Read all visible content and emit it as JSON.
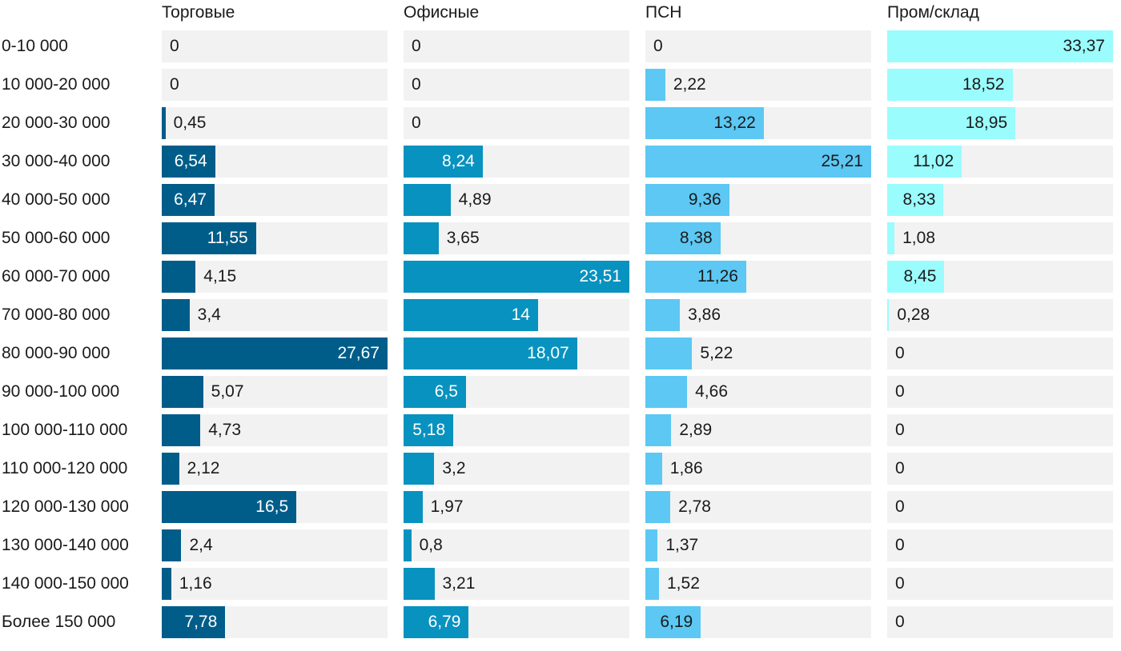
{
  "chart_data": {
    "type": "bar",
    "orientation": "horizontal",
    "layout": "small-multiples",
    "categories": [
      "0-10 000",
      "10 000-20 000",
      "20 000-30 000",
      "30 000-40 000",
      "40 000-50 000",
      "50 000-60 000",
      "60 000-70 000",
      "70 000-80 000",
      "80 000-90 000",
      "90 000-100 000",
      "100 000-110 000",
      "110 000-120 000",
      "120 000-130 000",
      "130 000-140 000",
      "140 000-150 000",
      "Более 150 000"
    ],
    "series": [
      {
        "name": "Торговые",
        "color": "#005d89",
        "label_color_inside": "#ffffff",
        "values": [
          0,
          0,
          0.45,
          6.54,
          6.47,
          11.55,
          4.15,
          3.4,
          27.67,
          5.07,
          4.73,
          2.12,
          16.5,
          2.4,
          1.16,
          7.78
        ],
        "labels": [
          "0",
          "0",
          "0,45",
          "6,54",
          "6,47",
          "11,55",
          "4,15",
          "3,4",
          "27,67",
          "5,07",
          "4,73",
          "2,12",
          "16,5",
          "2,4",
          "1,16",
          "7,78"
        ],
        "xlim": [
          0,
          27.67
        ]
      },
      {
        "name": "Офисные",
        "color": "#0892bf",
        "label_color_inside": "#ffffff",
        "values": [
          0,
          0,
          0,
          8.24,
          4.89,
          3.65,
          23.51,
          14,
          18.07,
          6.5,
          5.18,
          3.2,
          1.97,
          0.8,
          3.21,
          6.79
        ],
        "labels": [
          "0",
          "0",
          "0",
          "8,24",
          "4,89",
          "3,65",
          "23,51",
          "14",
          "18,07",
          "6,5",
          "5,18",
          "3,2",
          "1,97",
          "0,8",
          "3,21",
          "6,79"
        ],
        "xlim": [
          0,
          23.51
        ]
      },
      {
        "name": "ПСН",
        "color": "#5cc8f3",
        "label_color_inside": "#1a1a1a",
        "values": [
          0,
          2.22,
          13.22,
          25.21,
          9.36,
          8.38,
          11.26,
          3.86,
          5.22,
          4.66,
          2.89,
          1.86,
          2.78,
          1.37,
          1.52,
          6.19
        ],
        "labels": [
          "0",
          "2,22",
          "13,22",
          "25,21",
          "9,36",
          "8,38",
          "11,26",
          "3,86",
          "5,22",
          "4,66",
          "2,89",
          "1,86",
          "2,78",
          "1,37",
          "1,52",
          "6,19"
        ],
        "xlim": [
          0,
          25.21
        ]
      },
      {
        "name": "Пром/склад",
        "color": "#9afcfd",
        "label_color_inside": "#1a1a1a",
        "values": [
          33.37,
          18.52,
          18.95,
          11.02,
          8.33,
          1.08,
          8.45,
          0.28,
          0,
          0,
          0,
          0,
          0,
          0,
          0,
          0
        ],
        "labels": [
          "33,37",
          "18,52",
          "18,95",
          "11,02",
          "8,33",
          "1,08",
          "8,45",
          "0,28",
          "0",
          "0",
          "0",
          "0",
          "0",
          "0",
          "0",
          "0"
        ],
        "xlim": [
          0,
          33.37
        ]
      }
    ],
    "title": "",
    "xlabel": "",
    "ylabel": "",
    "grid": false,
    "legend": "none"
  }
}
